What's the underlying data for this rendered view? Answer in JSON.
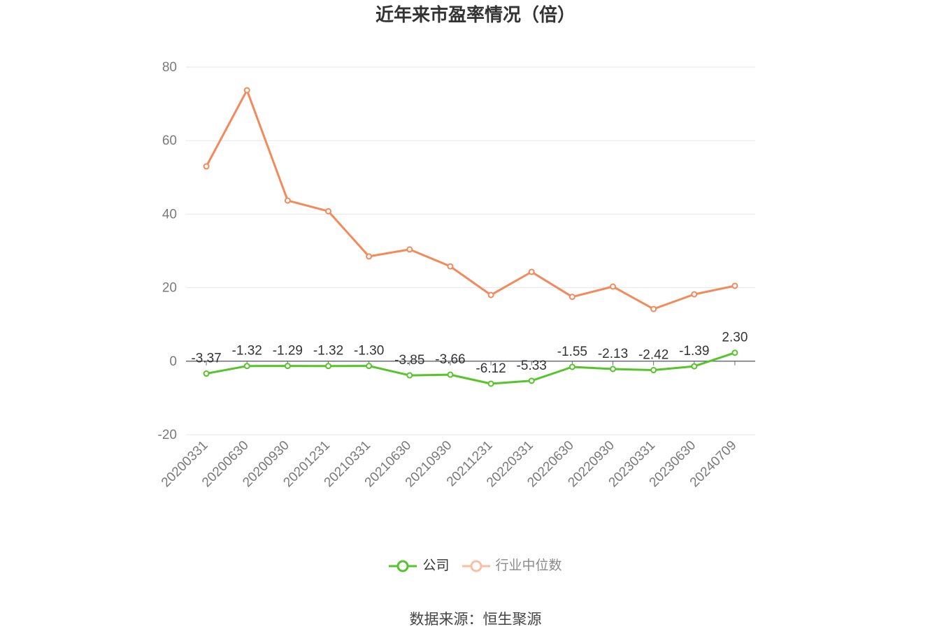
{
  "chart_data": {
    "type": "line",
    "title": "近年来市盈率情况（倍）",
    "xlabel": "",
    "ylabel": "",
    "categories": [
      "20200331",
      "20200630",
      "20200930",
      "20201231",
      "20210331",
      "20210630",
      "20210930",
      "20211231",
      "20220331",
      "20220630",
      "20220930",
      "20230331",
      "20230630",
      "20240709"
    ],
    "ylim": [
      -20,
      80
    ],
    "yticks": [
      -20,
      0,
      20,
      40,
      60,
      80
    ],
    "grid": true,
    "legend_position": "bottom",
    "series": [
      {
        "name": "公司",
        "color": "#56c42a",
        "legend_color": "#56c42a",
        "values": [
          -3.37,
          -1.32,
          -1.29,
          -1.32,
          -1.3,
          -3.85,
          -3.66,
          -6.12,
          -5.33,
          -1.55,
          -2.13,
          -2.42,
          -1.39,
          2.3
        ],
        "data_labels": [
          "-3.37",
          "-1.32",
          "-1.29",
          "-1.32",
          "-1.30",
          "-3.85",
          "-3.66",
          "-6.12",
          "-5.33",
          "-1.55",
          "-2.13",
          "-2.42",
          "-1.39",
          "2.30"
        ]
      },
      {
        "name": "行业中位数",
        "color": "#f28a5c",
        "legend_color": "#f8bfa5",
        "values": [
          53.0,
          73.7,
          43.7,
          40.8,
          28.5,
          30.4,
          25.8,
          18.0,
          24.3,
          17.5,
          20.3,
          14.2,
          18.2,
          20.5
        ]
      }
    ]
  },
  "source": "数据来源：恒生聚源"
}
